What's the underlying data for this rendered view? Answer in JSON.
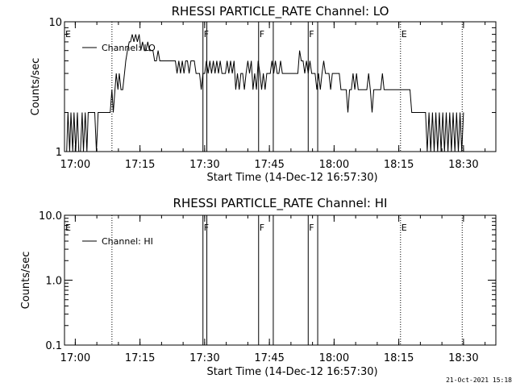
{
  "footer": {
    "timestamp": "21-Oct-2021 15:18"
  },
  "chart_data": [
    {
      "type": "line",
      "title": "RHESSI PARTICLE_RATE Channel: LO",
      "xlabel": "Start Time (14-Dec-12 16:57:30)",
      "ylabel": "Counts/sec",
      "x_unit": "minutes after 16:57:30",
      "xlim": [
        0,
        100
      ],
      "ylim": [
        1,
        10
      ],
      "yscale": "log",
      "x_tick_labels": [
        "17:00",
        "17:15",
        "17:30",
        "17:45",
        "18:00",
        "18:15",
        "18:30"
      ],
      "y_tick_labels": [
        "1",
        "10"
      ],
      "legend": {
        "position": "top-left",
        "entries": [
          "Channel: LO"
        ]
      },
      "series": [
        {
          "name": "Channel: LO",
          "points": [
            [
              0.5,
              1
            ],
            [
              0.8,
              2
            ],
            [
              1.2,
              1
            ],
            [
              1.5,
              2
            ],
            [
              1.9,
              1
            ],
            [
              2.2,
              2
            ],
            [
              2.6,
              1
            ],
            [
              3.0,
              2
            ],
            [
              3.3,
              1
            ],
            [
              3.7,
              1
            ],
            [
              4.1,
              2
            ],
            [
              4.4,
              1
            ],
            [
              4.8,
              2
            ],
            [
              5.2,
              1
            ],
            [
              5.5,
              2
            ],
            [
              5.9,
              2
            ],
            [
              6.3,
              2
            ],
            [
              6.7,
              2
            ],
            [
              7.0,
              2
            ],
            [
              7.4,
              1
            ],
            [
              7.8,
              2
            ],
            [
              8.2,
              2
            ],
            [
              8.6,
              2
            ],
            [
              9.0,
              2
            ],
            [
              9.4,
              2
            ],
            [
              9.8,
              2
            ],
            [
              10.2,
              2
            ],
            [
              10.6,
              2
            ],
            [
              11.0,
              3
            ],
            [
              11.3,
              2
            ],
            [
              11.7,
              3
            ],
            [
              12.0,
              4
            ],
            [
              12.4,
              3
            ],
            [
              12.7,
              4
            ],
            [
              13.1,
              3
            ],
            [
              13.5,
              3
            ],
            [
              13.9,
              4
            ],
            [
              14.2,
              5
            ],
            [
              14.6,
              6
            ],
            [
              15.0,
              7
            ],
            [
              15.3,
              7
            ],
            [
              15.7,
              8
            ],
            [
              16.1,
              7
            ],
            [
              16.5,
              8
            ],
            [
              16.9,
              7
            ],
            [
              17.3,
              8
            ],
            [
              17.7,
              6
            ],
            [
              18.1,
              7
            ],
            [
              18.5,
              6
            ],
            [
              18.9,
              6
            ],
            [
              19.3,
              7
            ],
            [
              19.7,
              6
            ],
            [
              20.1,
              6
            ],
            [
              20.5,
              6
            ],
            [
              20.9,
              5
            ],
            [
              21.3,
              5
            ],
            [
              21.7,
              6
            ],
            [
              22.1,
              5
            ],
            [
              22.5,
              5
            ],
            [
              22.9,
              5
            ],
            [
              23.3,
              5
            ],
            [
              23.7,
              5
            ],
            [
              24.1,
              5
            ],
            [
              24.5,
              5
            ],
            [
              24.9,
              5
            ],
            [
              25.3,
              5
            ],
            [
              25.7,
              5
            ],
            [
              26.1,
              4
            ],
            [
              26.5,
              5
            ],
            [
              26.9,
              4
            ],
            [
              27.3,
              5
            ],
            [
              27.7,
              4
            ],
            [
              28.1,
              5
            ],
            [
              28.5,
              5
            ],
            [
              28.9,
              4
            ],
            [
              29.3,
              5
            ],
            [
              29.7,
              5
            ],
            [
              30.1,
              5
            ],
            [
              30.5,
              4
            ],
            [
              30.9,
              4
            ],
            [
              31.3,
              4
            ],
            [
              31.7,
              3
            ],
            [
              32.1,
              4
            ],
            [
              32.5,
              4
            ],
            [
              32.9,
              5
            ],
            [
              33.3,
              4
            ],
            [
              33.7,
              5
            ],
            [
              34.1,
              4
            ],
            [
              34.5,
              5
            ],
            [
              34.9,
              4
            ],
            [
              35.3,
              5
            ],
            [
              35.7,
              4
            ],
            [
              36.1,
              5
            ],
            [
              36.5,
              4
            ],
            [
              36.9,
              4
            ],
            [
              37.3,
              4
            ],
            [
              37.7,
              5
            ],
            [
              38.1,
              4
            ],
            [
              38.5,
              5
            ],
            [
              38.9,
              4
            ],
            [
              39.3,
              5
            ],
            [
              39.7,
              3
            ],
            [
              40.1,
              4
            ],
            [
              40.5,
              3
            ],
            [
              40.9,
              4
            ],
            [
              41.3,
              4
            ],
            [
              41.7,
              3
            ],
            [
              42.1,
              4
            ],
            [
              42.5,
              5
            ],
            [
              42.9,
              4
            ],
            [
              43.3,
              5
            ],
            [
              43.7,
              3
            ],
            [
              44.1,
              4
            ],
            [
              44.5,
              3
            ],
            [
              44.9,
              5
            ],
            [
              45.3,
              4
            ],
            [
              45.7,
              3
            ],
            [
              46.1,
              4
            ],
            [
              46.5,
              3
            ],
            [
              46.9,
              4
            ],
            [
              47.3,
              4
            ],
            [
              47.7,
              4
            ],
            [
              48.1,
              5
            ],
            [
              48.5,
              4
            ],
            [
              48.9,
              5
            ],
            [
              49.3,
              4
            ],
            [
              49.7,
              4
            ],
            [
              50.1,
              5
            ],
            [
              50.5,
              4
            ],
            [
              50.9,
              4
            ],
            [
              51.3,
              4
            ],
            [
              51.7,
              4
            ],
            [
              52.1,
              4
            ],
            [
              52.5,
              4
            ],
            [
              52.9,
              4
            ],
            [
              53.3,
              4
            ],
            [
              53.7,
              4
            ],
            [
              54.1,
              4
            ],
            [
              54.5,
              6
            ],
            [
              54.9,
              5
            ],
            [
              55.3,
              5
            ],
            [
              55.7,
              4
            ],
            [
              56.1,
              5
            ],
            [
              56.5,
              4
            ],
            [
              56.9,
              5
            ],
            [
              57.3,
              4
            ],
            [
              57.7,
              4
            ],
            [
              58.1,
              4
            ],
            [
              58.5,
              3
            ],
            [
              58.9,
              4
            ],
            [
              59.3,
              3
            ],
            [
              59.7,
              4
            ],
            [
              60.1,
              5
            ],
            [
              60.5,
              4
            ],
            [
              60.9,
              4
            ],
            [
              61.3,
              4
            ],
            [
              61.7,
              3
            ],
            [
              62.1,
              4
            ],
            [
              62.5,
              4
            ],
            [
              62.9,
              4
            ],
            [
              63.3,
              4
            ],
            [
              63.7,
              4
            ],
            [
              64.1,
              3
            ],
            [
              64.5,
              3
            ],
            [
              64.9,
              3
            ],
            [
              65.3,
              3
            ],
            [
              65.7,
              2
            ],
            [
              66.1,
              3
            ],
            [
              66.5,
              3
            ],
            [
              66.9,
              4
            ],
            [
              67.3,
              3
            ],
            [
              67.7,
              4
            ],
            [
              68.1,
              3
            ],
            [
              68.5,
              3
            ],
            [
              68.9,
              3
            ],
            [
              69.3,
              3
            ],
            [
              69.7,
              3
            ],
            [
              70.1,
              3
            ],
            [
              70.5,
              4
            ],
            [
              70.9,
              3
            ],
            [
              71.3,
              2
            ],
            [
              71.7,
              3
            ],
            [
              72.1,
              3
            ],
            [
              72.5,
              3
            ],
            [
              72.9,
              3
            ],
            [
              73.3,
              3
            ],
            [
              73.7,
              4
            ],
            [
              74.1,
              3
            ],
            [
              74.5,
              3
            ],
            [
              74.9,
              3
            ],
            [
              75.3,
              3
            ],
            [
              75.7,
              3
            ],
            [
              76.1,
              3
            ],
            [
              76.5,
              3
            ],
            [
              76.9,
              3
            ],
            [
              77.3,
              3
            ],
            [
              77.7,
              3
            ],
            [
              78.1,
              3
            ],
            [
              78.5,
              3
            ],
            [
              78.9,
              3
            ],
            [
              79.3,
              3
            ],
            [
              79.7,
              3
            ],
            [
              80.1,
              3
            ],
            [
              80.5,
              2
            ],
            [
              80.9,
              2
            ],
            [
              81.3,
              2
            ],
            [
              81.7,
              2
            ],
            [
              82.1,
              2
            ],
            [
              82.5,
              2
            ],
            [
              82.9,
              2
            ],
            [
              83.3,
              2
            ],
            [
              83.7,
              2
            ],
            [
              84.1,
              1
            ],
            [
              84.5,
              2
            ],
            [
              84.9,
              1
            ],
            [
              85.3,
              2
            ],
            [
              85.7,
              1
            ],
            [
              86.1,
              2
            ],
            [
              86.5,
              1
            ],
            [
              86.9,
              2
            ],
            [
              87.3,
              1
            ],
            [
              87.7,
              2
            ],
            [
              88.1,
              1
            ],
            [
              88.5,
              2
            ],
            [
              88.9,
              1
            ],
            [
              89.3,
              2
            ],
            [
              89.7,
              1
            ],
            [
              90.1,
              2
            ],
            [
              90.5,
              1
            ],
            [
              90.9,
              2
            ],
            [
              91.3,
              1
            ],
            [
              91.7,
              2
            ],
            [
              92.1,
              1
            ],
            [
              92.5,
              2
            ]
          ]
        }
      ],
      "markers": {
        "dotted": [
          11.0,
          92.2
        ],
        "dotted_e": [
          77.9
        ],
        "solid": [
          32.1,
          33.0,
          45.0,
          48.4,
          56.5,
          58.7
        ],
        "flags": [
          {
            "label": "E",
            "x": 0.0
          },
          {
            "label": "F",
            "x": 32.1
          },
          {
            "label": "F",
            "x": 45.0
          },
          {
            "label": "F",
            "x": 56.5
          },
          {
            "label": "E",
            "x": 77.9
          }
        ]
      }
    },
    {
      "type": "line",
      "title": "RHESSI PARTICLE_RATE Channel: HI",
      "xlabel": "Start Time (14-Dec-12 16:57:30)",
      "ylabel": "Counts/sec",
      "x_unit": "minutes after 16:57:30",
      "xlim": [
        0,
        100
      ],
      "ylim": [
        0.1,
        10
      ],
      "yscale": "log",
      "x_tick_labels": [
        "17:00",
        "17:15",
        "17:30",
        "17:45",
        "18:00",
        "18:15",
        "18:30"
      ],
      "y_tick_labels": [
        "0.1",
        "1.0",
        "10.0"
      ],
      "legend": {
        "position": "top-left",
        "entries": [
          "Channel: HI"
        ]
      },
      "series": [
        {
          "name": "Channel: HI",
          "points": []
        }
      ],
      "markers": {
        "dotted": [
          11.0,
          92.2
        ],
        "dotted_e": [
          77.9
        ],
        "solid": [
          32.1,
          33.0,
          45.0,
          48.4,
          56.5,
          58.7
        ],
        "flags": [
          {
            "label": "E",
            "x": 0.0
          },
          {
            "label": "F",
            "x": 32.1
          },
          {
            "label": "F",
            "x": 45.0
          },
          {
            "label": "F",
            "x": 56.5
          },
          {
            "label": "E",
            "x": 77.9
          }
        ]
      }
    }
  ]
}
